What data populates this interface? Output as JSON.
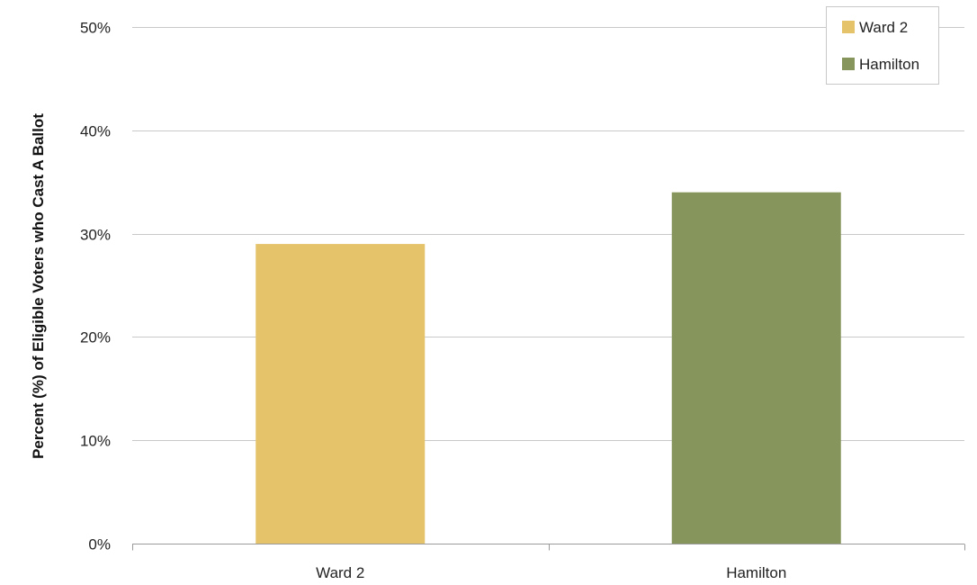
{
  "chart_data": {
    "type": "bar",
    "categories": [
      "Ward 2",
      "Hamilton"
    ],
    "values": [
      29,
      34
    ],
    "value_unit": "%",
    "series": [
      {
        "name": "Ward 2",
        "values": [
          29,
          null
        ],
        "color": "#E5C36A"
      },
      {
        "name": "Hamilton",
        "values": [
          null,
          34
        ],
        "color": "#86955C"
      }
    ],
    "title": "",
    "xlabel": "",
    "ylabel": "Percent (%) of Eligible Voters who Cast A Ballot",
    "ylim": [
      0,
      50
    ],
    "yticks": [
      0,
      10,
      20,
      30,
      40,
      50
    ],
    "ytick_labels": [
      "0%",
      "10%",
      "20%",
      "30%",
      "40%",
      "50%"
    ],
    "grid": true,
    "legend_placement": "top-right",
    "legend": [
      {
        "label": "Ward 2",
        "color": "#E5C36A"
      },
      {
        "label": "Hamilton",
        "color": "#86955C"
      }
    ]
  }
}
